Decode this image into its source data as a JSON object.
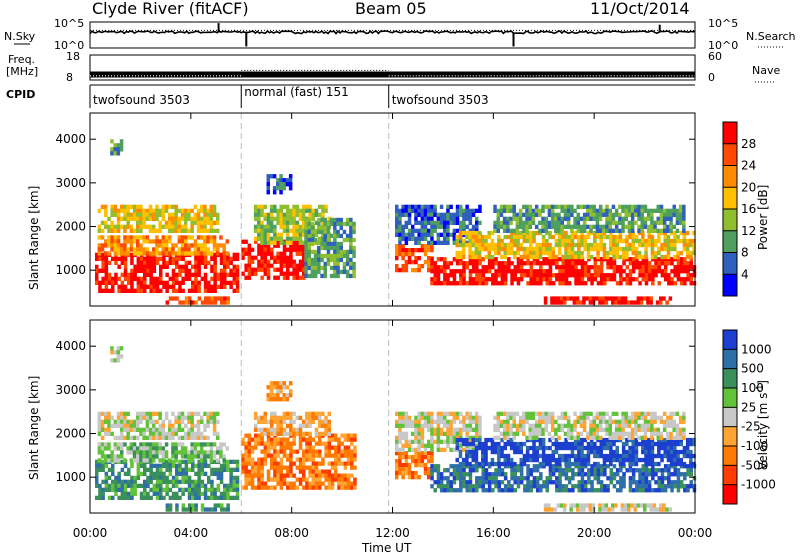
{
  "header": {
    "station": "Clyde River (fitACF)",
    "beam": "Beam 05",
    "date": "11/Oct/2014"
  },
  "chart_data": [
    {
      "type": "line",
      "panel": "noise",
      "left_label": "N.Sky",
      "right_label": "N.Search",
      "left_ticks": [
        "10^5",
        "10^0"
      ],
      "right_ticks": [
        "10^5",
        "10^0"
      ],
      "scale": "log",
      "ylim": [
        1,
        100000
      ],
      "series": [
        {
          "name": "N.Sky",
          "style": "solid",
          "level": 1000,
          "spikes": [
            [
              5.1,
              60000
            ],
            [
              6.2,
              2
            ],
            [
              16.8,
              2
            ],
            [
              22.6,
              30000
            ]
          ]
        },
        {
          "name": "N.Search",
          "style": "dotted",
          "level": 1000
        }
      ],
      "xlim": [
        0,
        24
      ]
    },
    {
      "type": "line",
      "panel": "frequency",
      "left_label_lines": [
        "Freq.",
        "[MHz]"
      ],
      "left_ticks": [
        "18",
        "8"
      ],
      "ylim": [
        8,
        18
      ],
      "right_label": "Nave",
      "right_ticks": [
        "60",
        "0"
      ],
      "nave_lim": [
        0,
        60
      ],
      "series": [
        {
          "name": "Freq.",
          "style": "solid",
          "value_mhz": 10.2
        },
        {
          "name": "Nave",
          "style": "dotted",
          "segments": [
            [
              0,
              6.0,
              10
            ],
            [
              6.0,
              11.85,
              23
            ],
            [
              11.85,
              24,
              10
            ]
          ]
        }
      ],
      "xlim": [
        0,
        24
      ]
    },
    {
      "type": "table",
      "panel": "cpid",
      "label": "CPID",
      "segments": [
        {
          "start": 0,
          "end": 6.0,
          "name": "twofsound 3503"
        },
        {
          "start": 6.0,
          "end": 11.85,
          "name": "normal (fast) 151"
        },
        {
          "start": 11.85,
          "end": 24,
          "name": "twofsound 3503"
        }
      ]
    },
    {
      "type": "heatmap",
      "panel": "power",
      "ylabel": "Slant Range [km]",
      "yticks": [
        1000,
        2000,
        3000,
        4000
      ],
      "ylim": [
        180,
        4600
      ],
      "xlim": [
        0,
        24
      ],
      "colorbar": {
        "label": "Power [dB]",
        "ticks": [
          "28",
          "24",
          "20",
          "16",
          "12",
          "8",
          "4"
        ],
        "colors": [
          "#ff0000",
          "#ff4800",
          "#ff8c00",
          "#ffc000",
          "#8fbf2f",
          "#4f9f5f",
          "#2f5fbf",
          "#0000ff"
        ]
      },
      "bands": [
        {
          "t0": 0.2,
          "t1": 5.8,
          "r0": 500,
          "r1": 1400,
          "level": 0
        },
        {
          "t0": 0.3,
          "t1": 5.5,
          "r0": 1400,
          "r1": 1800,
          "level": 2
        },
        {
          "t0": 0.3,
          "t1": 5.0,
          "r0": 1900,
          "r1": 2500,
          "level": 3
        },
        {
          "t0": 3.0,
          "t1": 5.5,
          "r0": 250,
          "r1": 400,
          "level": 1
        },
        {
          "t0": 6.0,
          "t1": 8.5,
          "r0": 800,
          "r1": 1700,
          "level": 0
        },
        {
          "t0": 6.5,
          "t1": 9.5,
          "r0": 1600,
          "r1": 2500,
          "level": 4
        },
        {
          "t0": 8.5,
          "t1": 10.5,
          "r0": 900,
          "r1": 2200,
          "level": 5
        },
        {
          "t0": 12.1,
          "t1": 13.5,
          "r0": 1000,
          "r1": 1600,
          "level": 1
        },
        {
          "t0": 12.1,
          "t1": 15.5,
          "r0": 1600,
          "r1": 2500,
          "level": 6
        },
        {
          "t0": 13.5,
          "t1": 24.0,
          "r0": 700,
          "r1": 1300,
          "level": 0
        },
        {
          "t0": 14.5,
          "t1": 24.0,
          "r0": 1300,
          "r1": 1900,
          "level": 3
        },
        {
          "t0": 16.0,
          "t1": 23.5,
          "r0": 1900,
          "r1": 2500,
          "level": 5
        },
        {
          "t0": 18.0,
          "t1": 23.0,
          "r0": 250,
          "r1": 400,
          "level": 0
        },
        {
          "t0": 0.8,
          "t1": 1.2,
          "r0": 3700,
          "r1": 4000,
          "level": 5
        },
        {
          "t0": 7.0,
          "t1": 8.0,
          "r0": 2800,
          "r1": 3200,
          "level": 6
        }
      ]
    },
    {
      "type": "heatmap",
      "panel": "velocity",
      "ylabel": "Slant Range [km]",
      "yticks": [
        1000,
        2000,
        3000,
        4000
      ],
      "ylim": [
        180,
        4600
      ],
      "xlim": [
        0,
        24
      ],
      "xlabel": "Time UT",
      "xticks": [
        "00:00",
        "04:00",
        "08:00",
        "12:00",
        "16:00",
        "20:00",
        "00:00"
      ],
      "colorbar": {
        "label": "Velocity [m s",
        "label_sup": "-1",
        "label_end": "]",
        "ticks": [
          "1000",
          "500",
          "100",
          "25",
          "-25",
          "-100",
          "-500",
          "-1000"
        ],
        "colors": [
          "#1c3fd0",
          "#2f6fa8",
          "#3b8f5b",
          "#62c23a",
          "#c8c8c8",
          "#ffa333",
          "#ff7a00",
          "#ff3c00",
          "#ff0000"
        ]
      },
      "bands": [
        {
          "t0": 0.2,
          "t1": 5.8,
          "r0": 500,
          "r1": 1400,
          "level": 2
        },
        {
          "t0": 0.3,
          "t1": 5.5,
          "r0": 1400,
          "r1": 1800,
          "level": 3
        },
        {
          "t0": 0.3,
          "t1": 5.0,
          "r0": 1900,
          "r1": 2500,
          "level": 4
        },
        {
          "t0": 3.0,
          "t1": 5.5,
          "r0": 250,
          "r1": 400,
          "level": 2
        },
        {
          "t0": 6.0,
          "t1": 10.5,
          "r0": 800,
          "r1": 2000,
          "level": 6
        },
        {
          "t0": 6.5,
          "t1": 9.5,
          "r0": 2000,
          "r1": 2500,
          "level": 5
        },
        {
          "t0": 12.1,
          "t1": 13.5,
          "r0": 1000,
          "r1": 1600,
          "level": 6
        },
        {
          "t0": 12.1,
          "t1": 15.5,
          "r0": 1600,
          "r1": 2500,
          "level": 4
        },
        {
          "t0": 13.5,
          "t1": 24.0,
          "r0": 700,
          "r1": 1300,
          "level": 1
        },
        {
          "t0": 14.5,
          "t1": 24.0,
          "r0": 1300,
          "r1": 1900,
          "level": 0
        },
        {
          "t0": 16.0,
          "t1": 23.5,
          "r0": 1900,
          "r1": 2500,
          "level": 4
        },
        {
          "t0": 18.0,
          "t1": 23.0,
          "r0": 250,
          "r1": 400,
          "level": 4
        },
        {
          "t0": 0.8,
          "t1": 1.2,
          "r0": 3700,
          "r1": 4000,
          "level": 4
        },
        {
          "t0": 7.0,
          "t1": 8.0,
          "r0": 2800,
          "r1": 3200,
          "level": 5
        }
      ]
    }
  ]
}
